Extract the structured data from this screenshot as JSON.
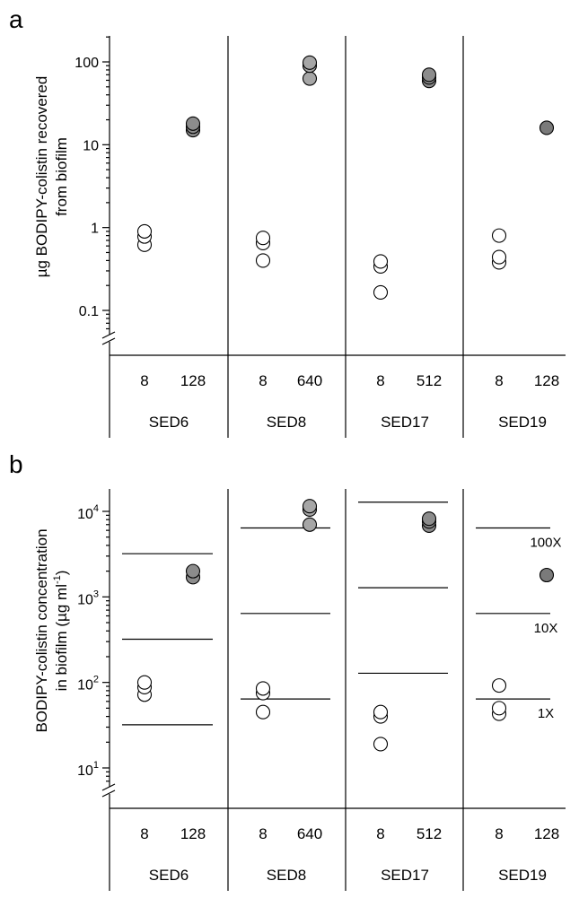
{
  "figure": {
    "panels": [
      "a",
      "b"
    ]
  },
  "chart_data": [
    {
      "panel": "a",
      "type": "scatter",
      "ylabel": "µg BODIPY-colistin recovered\nfrom biofilm",
      "yscale": "log",
      "ylim": [
        0.05,
        200
      ],
      "yticks": [
        {
          "value": 0.1,
          "label": "0.1"
        },
        {
          "value": 1,
          "label": "1"
        },
        {
          "value": 10,
          "label": "10"
        },
        {
          "value": 100,
          "label": "100"
        }
      ],
      "axis_break": true,
      "groups": [
        {
          "name": "SED6",
          "categories": [
            {
              "label": "8",
              "values": [
                0.62,
                0.78,
                0.9
              ],
              "fill": "#ffffff"
            },
            {
              "label": "128",
              "values": [
                15,
                16.5,
                18
              ],
              "fill": "#8c8c8c"
            }
          ]
        },
        {
          "name": "SED8",
          "categories": [
            {
              "label": "8",
              "values": [
                0.4,
                0.65,
                0.75
              ],
              "fill": "#ffffff"
            },
            {
              "label": "640",
              "values": [
                63,
                90,
                98
              ],
              "fill": "#a6a6a6"
            }
          ]
        },
        {
          "name": "SED17",
          "categories": [
            {
              "label": "8",
              "values": [
                0.165,
                0.34,
                0.39
              ],
              "fill": "#ffffff"
            },
            {
              "label": "512",
              "values": [
                59,
                65,
                70
              ],
              "fill": "#8c8c8c"
            }
          ]
        },
        {
          "name": "SED19",
          "categories": [
            {
              "label": "8",
              "values": [
                0.38,
                0.44,
                0.8
              ],
              "fill": "#ffffff"
            },
            {
              "label": "128",
              "values": [
                16
              ],
              "fill": "#7a7a7a"
            }
          ]
        }
      ]
    },
    {
      "panel": "b",
      "type": "scatter",
      "ylabel": "BODIPY-colistin concentration\nin biofilm (µg ml",
      "ylabel_sup": "-1",
      "ylabel_tail": ")",
      "yscale": "log",
      "ylim": [
        5,
        30000
      ],
      "yticks": [
        {
          "value": 10,
          "base": "10",
          "exp": "1"
        },
        {
          "value": 100,
          "base": "10",
          "exp": "2"
        },
        {
          "value": 1000,
          "base": "10",
          "exp": "3"
        },
        {
          "value": 10000,
          "base": "10",
          "exp": "4"
        }
      ],
      "axis_break": true,
      "ref_labels": [
        "100X",
        "10X",
        "1X"
      ],
      "groups": [
        {
          "name": "SED6",
          "ref_lines": [
            32,
            320,
            3200
          ],
          "categories": [
            {
              "label": "8",
              "values": [
                72,
                88,
                100
              ],
              "fill": "#ffffff"
            },
            {
              "label": "128",
              "values": [
                1700,
                2000
              ],
              "fill": "#8c8c8c"
            }
          ]
        },
        {
          "name": "SED8",
          "ref_lines": [
            64,
            640,
            6400
          ],
          "categories": [
            {
              "label": "8",
              "values": [
                45,
                75,
                85
              ],
              "fill": "#ffffff"
            },
            {
              "label": "640",
              "values": [
                7000,
                10500,
                11500
              ],
              "fill": "#a6a6a6"
            }
          ]
        },
        {
          "name": "SED17",
          "ref_lines": [
            128,
            1280,
            12800
          ],
          "categories": [
            {
              "label": "8",
              "values": [
                19,
                40,
                45
              ],
              "fill": "#ffffff"
            },
            {
              "label": "512",
              "values": [
                6800,
                7600,
                8200
              ],
              "fill": "#8c8c8c"
            }
          ]
        },
        {
          "name": "SED19",
          "ref_lines": [
            64,
            640,
            6400
          ],
          "categories": [
            {
              "label": "8",
              "values": [
                43,
                50,
                92
              ],
              "fill": "#ffffff"
            },
            {
              "label": "128",
              "values": [
                1800
              ],
              "fill": "#7a7a7a"
            }
          ]
        }
      ]
    }
  ]
}
